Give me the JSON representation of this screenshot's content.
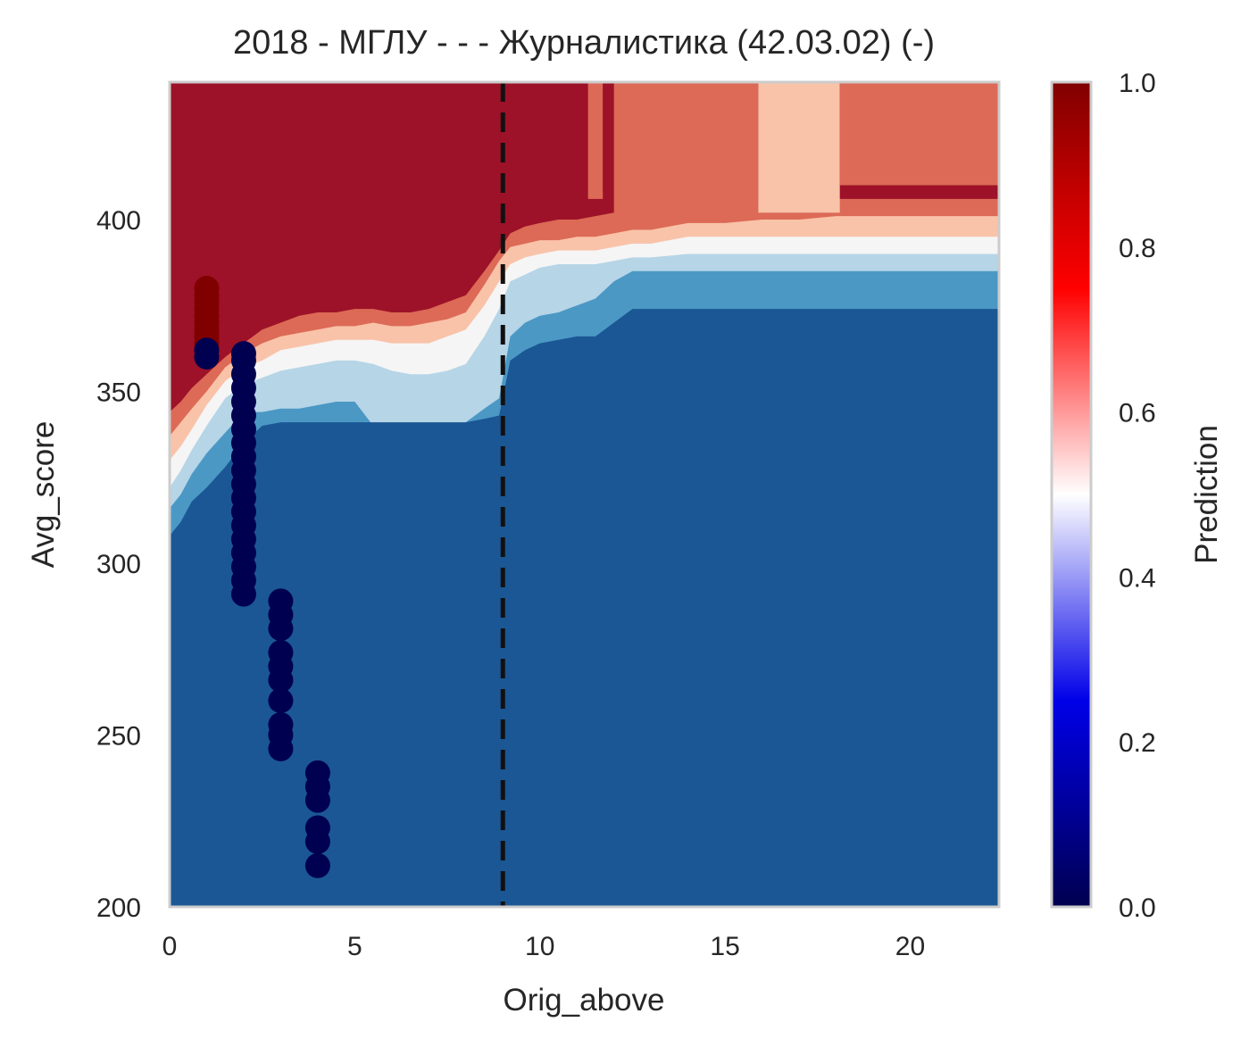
{
  "chart_data": {
    "type": "heatmap",
    "title": "2018 - МГЛУ - - - Журналистика (42.03.02) (-)",
    "xlabel": "Orig_above",
    "ylabel": "Avg_score",
    "xlim": [
      0,
      22.4
    ],
    "ylim": [
      200,
      440
    ],
    "xticks": [
      0,
      5,
      10,
      15,
      20
    ],
    "yticks": [
      200,
      250,
      300,
      350,
      400
    ],
    "grid": false,
    "colorbar": {
      "label": "Prediction",
      "range": [
        0,
        1
      ],
      "ticks": [
        "0.0",
        "0.2",
        "0.4",
        "0.6",
        "0.8",
        "1.0"
      ],
      "colormap": "seismic"
    },
    "vline": {
      "x": 9,
      "style": "dashed",
      "color": "#111111"
    },
    "contour_levels": [
      {
        "level": "0.0-0.2",
        "color": "#1b5794"
      },
      {
        "level": "0.2-0.3",
        "color": "#4b98c5"
      },
      {
        "level": "0.3-0.45",
        "color": "#b6d5e7"
      },
      {
        "level": "0.45-0.55",
        "color": "#f5f5f5"
      },
      {
        "level": "0.55-0.7",
        "color": "#f9c3a9"
      },
      {
        "level": "0.7-0.85",
        "color": "#dc6a56"
      },
      {
        "level": "0.85-1.0",
        "color": "#9d1228"
      }
    ],
    "boundaries": {
      "x": [
        0,
        0.3,
        0.6,
        1,
        1.5,
        2,
        2.5,
        3,
        3.5,
        4,
        4.5,
        5,
        5.5,
        6,
        6.5,
        7,
        7.5,
        8,
        8.5,
        8.9,
        9.2,
        9.6,
        10,
        10.5,
        11,
        11.5,
        12,
        12.5,
        13,
        14,
        15,
        16,
        17,
        18,
        19,
        20,
        21,
        22.4
      ],
      "b1": [
        308,
        312,
        318,
        322,
        328,
        335,
        340,
        341,
        341,
        341,
        341,
        341,
        341,
        341,
        341,
        341,
        341,
        341,
        342,
        343,
        359,
        362,
        364,
        365,
        366,
        366,
        370,
        374,
        374,
        374,
        374,
        374,
        374,
        374,
        374,
        374,
        374,
        374
      ],
      "b2": [
        316,
        320,
        326,
        332,
        338,
        344,
        344,
        345,
        345,
        346,
        347,
        347,
        340,
        338,
        338,
        339,
        340,
        341,
        345,
        348,
        366,
        370,
        372,
        373,
        375,
        377,
        382,
        385,
        385,
        385,
        385,
        385,
        385,
        385,
        385,
        385,
        385,
        385
      ],
      "b3": [
        322,
        327,
        333,
        340,
        348,
        352,
        354,
        356,
        357,
        358,
        359,
        359,
        358,
        356,
        355,
        355,
        356,
        358,
        366,
        374,
        382,
        384,
        386,
        387,
        387,
        387,
        388,
        389,
        389,
        390,
        390,
        390,
        390,
        390,
        390,
        390,
        390,
        390
      ],
      "b4": [
        330,
        334,
        339,
        346,
        353,
        357,
        359,
        362,
        363,
        364,
        365,
        365,
        365,
        364,
        364,
        364,
        366,
        368,
        375,
        382,
        387,
        389,
        390,
        391,
        391,
        391,
        392,
        393,
        393,
        395,
        395,
        395,
        395,
        395,
        395,
        395,
        395,
        395
      ],
      "b5": [
        337,
        341,
        345,
        350,
        357,
        361,
        364,
        366,
        367,
        368,
        369,
        369,
        370,
        369,
        369,
        370,
        371,
        373,
        381,
        388,
        392,
        393,
        394,
        394,
        395,
        395,
        396,
        397,
        397,
        399,
        399,
        400,
        400,
        401,
        401,
        401,
        401,
        401
      ],
      "b6": [
        344,
        347,
        351,
        355,
        360,
        364,
        368,
        370,
        372,
        373,
        373,
        374,
        374,
        373,
        373,
        374,
        376,
        378,
        385,
        391,
        396,
        398,
        399,
        400,
        400,
        401,
        402,
        403,
        403,
        406,
        406,
        406,
        406,
        406,
        406,
        406,
        406,
        406
      ]
    },
    "top_panels": [
      {
        "x_from": 11.3,
        "x_to": 11.7,
        "y_from": 406,
        "level": "0.7-0.85"
      },
      {
        "x_from": 11.7,
        "x_to": 12,
        "y_from": 408,
        "level": "0.85-1.0"
      },
      {
        "x_from": 12,
        "x_to": 15.9,
        "y_from": 402,
        "level": "0.7-0.85"
      },
      {
        "x_from": 15.9,
        "x_to": 18.1,
        "y_from": 402,
        "level": "0.55-0.7"
      },
      {
        "x_from": 18.1,
        "x_to": 22.4,
        "y_from": 410,
        "level": "0.7-0.85"
      }
    ],
    "scatter_points": [
      {
        "x": 1,
        "y": [
          362,
          364,
          366,
          368,
          370,
          372,
          374,
          376,
          378,
          380
        ],
        "prediction": 1
      },
      {
        "x": 1,
        "y": [
          360,
          362
        ],
        "prediction": 0
      },
      {
        "x": 2,
        "y": [
          291,
          295,
          299,
          303,
          307,
          311,
          315,
          319,
          323,
          327,
          331,
          335,
          339,
          343,
          347,
          351,
          355,
          359,
          361
        ],
        "prediction": 0
      },
      {
        "x": 3,
        "y": [
          246,
          250,
          253,
          260,
          266,
          270,
          274,
          281,
          285,
          289
        ],
        "prediction": 0
      },
      {
        "x": 4,
        "y": [
          212,
          219,
          223,
          231,
          235,
          239
        ],
        "prediction": 0
      }
    ]
  }
}
